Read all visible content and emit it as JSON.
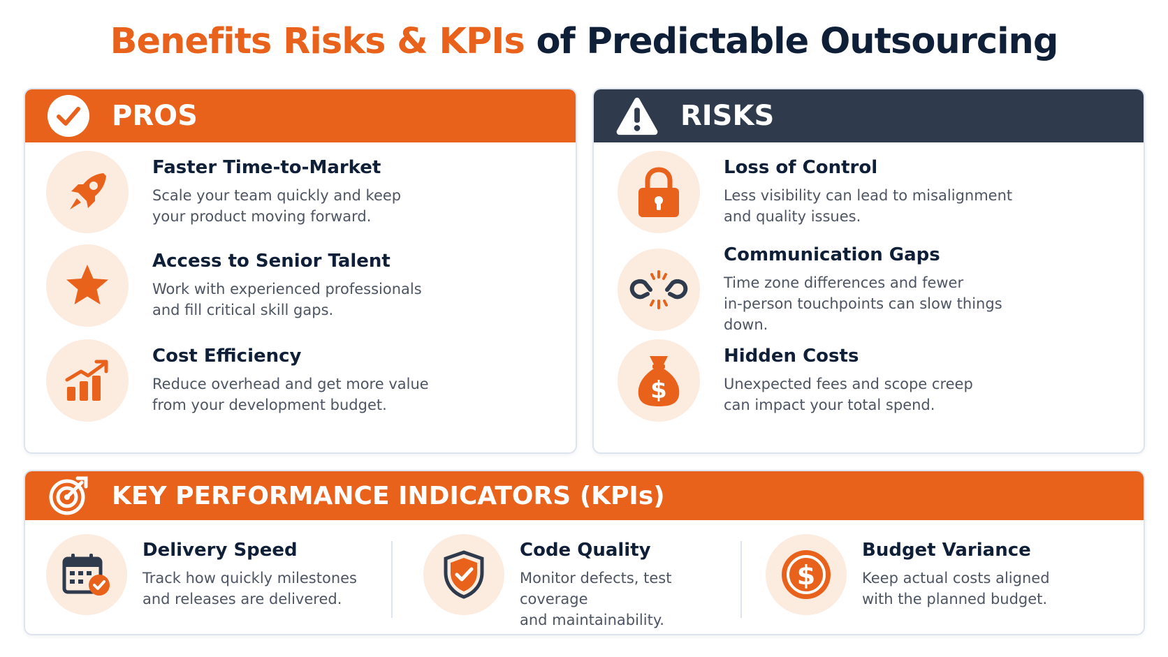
{
  "title": {
    "accent": "Benefits Risks & KPIs",
    "rest": "of Predictable Outsourcing"
  },
  "colors": {
    "orange": "#e8621c",
    "navy": "#2f3b4c",
    "light_orange": "#fcebdf",
    "dark_text": "#0f1f38"
  },
  "pros": {
    "header": "PROS",
    "header_icon": "check-circle-icon",
    "items": [
      {
        "icon": "rocket-icon",
        "title": "Faster Time-to-Market",
        "desc_line1": "Scale your team quickly and keep",
        "desc_line2": "your product moving forward."
      },
      {
        "icon": "star-icon",
        "title": "Access to Senior Talent",
        "desc_line1": "Work with experienced professionals",
        "desc_line2": "and fill critical skill gaps."
      },
      {
        "icon": "growth-chart-icon",
        "title": "Cost Efficiency",
        "desc_line1": "Reduce overhead and get more value",
        "desc_line2": "from your development budget."
      }
    ]
  },
  "risks": {
    "header": "RISKS",
    "header_icon": "warning-triangle-icon",
    "items": [
      {
        "icon": "padlock-icon",
        "title": "Loss of Control",
        "desc_line1": "Less visibility can lead to misalignment",
        "desc_line2": "and quality issues."
      },
      {
        "icon": "broken-link-icon",
        "title": "Communication Gaps",
        "desc_line1": "Time zone differences and fewer",
        "desc_line2": "in-person touchpoints can slow things down."
      },
      {
        "icon": "money-bag-icon",
        "title": "Hidden Costs",
        "desc_line1": "Unexpected fees and scope creep",
        "desc_line2": "can impact your total spend."
      }
    ]
  },
  "kpis": {
    "header": "KEY PERFORMANCE INDICATORS (KPIs)",
    "header_icon": "target-icon",
    "items": [
      {
        "icon": "calendar-check-icon",
        "title": "Delivery Speed",
        "desc_line1": "Track how quickly milestones",
        "desc_line2": "and releases are delivered."
      },
      {
        "icon": "shield-check-icon",
        "title": "Code Quality",
        "desc_line1": "Monitor defects, test coverage",
        "desc_line2": "and maintainability."
      },
      {
        "icon": "dollar-coin-icon",
        "title": "Budget Variance",
        "desc_line1": "Keep actual costs aligned",
        "desc_line2": "with the planned budget."
      }
    ]
  }
}
